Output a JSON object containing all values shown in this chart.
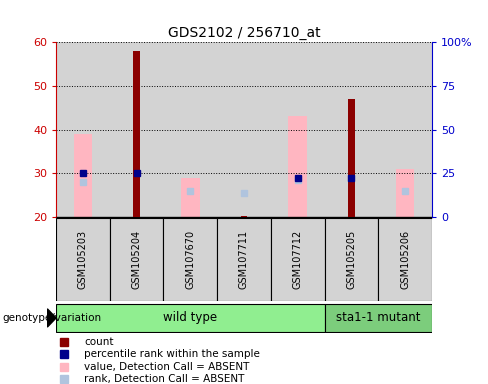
{
  "title": "GDS2102 / 256710_at",
  "sample_labels": [
    "GSM105203",
    "GSM105204",
    "GSM107670",
    "GSM107711",
    "GSM107712",
    "GSM105205",
    "GSM105206"
  ],
  "ylim": [
    20,
    60
  ],
  "y2lim": [
    0,
    100
  ],
  "yticks": [
    20,
    30,
    40,
    50,
    60
  ],
  "y2ticks": [
    0,
    25,
    50,
    75,
    100
  ],
  "y2ticklabels": [
    "0",
    "25",
    "50",
    "75",
    "100%"
  ],
  "bar_bottom": 20,
  "count_values": [
    null,
    58,
    null,
    20.3,
    null,
    47,
    null
  ],
  "rank_values": [
    30,
    30,
    null,
    null,
    29,
    29,
    null
  ],
  "value_absent": [
    39,
    null,
    29,
    null,
    43,
    null,
    31
  ],
  "rank_absent": [
    28,
    null,
    26,
    25.5,
    28.5,
    null,
    26
  ],
  "n_wildtype": 5,
  "n_mutant": 2,
  "group_labels": [
    "wild type",
    "sta1-1 mutant"
  ],
  "color_count": "#8b0000",
  "color_rank": "#00008b",
  "color_value_absent": "#ffb6c1",
  "color_rank_absent": "#b0c4de",
  "color_wt_bg": "#90ee90",
  "color_mut_bg": "#7ccd7c",
  "color_bar_bg": "#d3d3d3",
  "color_tick_left": "#cc0000",
  "color_tick_right": "#0000cc",
  "label_genotype": "genotype/variation",
  "legend_items": [
    {
      "label": "count",
      "color": "#8b0000"
    },
    {
      "label": "percentile rank within the sample",
      "color": "#00008b"
    },
    {
      "label": "value, Detection Call = ABSENT",
      "color": "#ffb6c1"
    },
    {
      "label": "rank, Detection Call = ABSENT",
      "color": "#b0c4de"
    }
  ]
}
